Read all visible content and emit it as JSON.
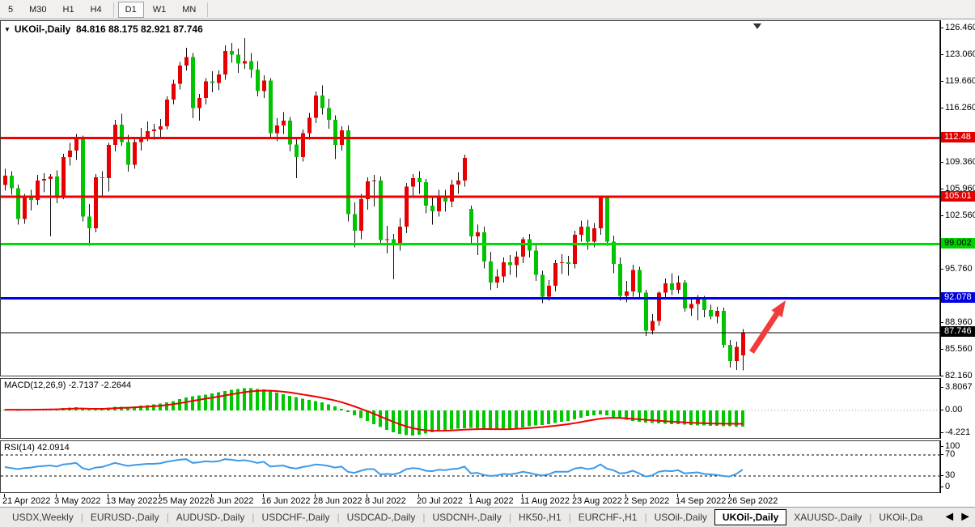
{
  "toolbar": {
    "items": [
      {
        "label": "5",
        "active": false,
        "sep_after": false
      },
      {
        "label": "M30",
        "active": false,
        "sep_after": false
      },
      {
        "label": "H1",
        "active": false,
        "sep_after": false
      },
      {
        "label": "H4",
        "active": false,
        "sep_after": true
      },
      {
        "label": "D1",
        "active": true,
        "sep_after": false
      },
      {
        "label": "W1",
        "active": false,
        "sep_after": false
      },
      {
        "label": "MN",
        "active": false,
        "sep_after": true
      }
    ]
  },
  "icons": {
    "symbol_dropdown": "▼",
    "tab_scroll_left": "◄",
    "tab_scroll_right": "►"
  },
  "chart_data": {
    "type": "candlestick",
    "title": {
      "symbol": "UKOil-,Daily",
      "ohlc_text": "84.816 88.175 82.921 87.746",
      "open": "84.816",
      "high": "88.175",
      "low": "82.921",
      "close": "87.746"
    },
    "colors": {
      "candle_up": "#e80000",
      "candle_down": "#00c400",
      "wick": "#111111",
      "line_red": "#f00000",
      "line_green": "#00dc00",
      "line_blue": "#0000f0",
      "line_black": "#000000",
      "macd_histogram": "#00c800",
      "macd_signal": "#f00000",
      "rsi_line": "#3d9ae8",
      "arrow": "#f23c3c",
      "shift_marker": "#333333"
    },
    "price_axis": {
      "tick_labels": [
        {
          "label": "126.460",
          "value": 126.46
        },
        {
          "label": "123.060",
          "value": 123.06
        },
        {
          "label": "119.660",
          "value": 119.66
        },
        {
          "label": "116.260",
          "value": 116.26
        },
        {
          "label": "109.360",
          "value": 109.36
        },
        {
          "label": "105.960",
          "value": 105.96
        },
        {
          "label": "102.560",
          "value": 102.56
        },
        {
          "label": "95.760",
          "value": 95.76
        },
        {
          "label": "88.960",
          "value": 88.96
        },
        {
          "label": "85.560",
          "value": 85.56
        },
        {
          "label": "82.160",
          "value": 82.16
        }
      ],
      "badges": [
        {
          "label": "112.48",
          "value": 112.48,
          "bg": "#e00000",
          "fg": "#ffffff"
        },
        {
          "label": "105.01",
          "value": 105.01,
          "bg": "#e00000",
          "fg": "#ffffff"
        },
        {
          "label": "99.002",
          "value": 99.002,
          "bg": "#00d000",
          "fg": "#000000"
        },
        {
          "label": "92.078",
          "value": 92.078,
          "bg": "#0000e0",
          "fg": "#ffffff"
        },
        {
          "label": "87.746",
          "value": 87.746,
          "bg": "#000000",
          "fg": "#ffffff"
        }
      ]
    },
    "hlines": [
      {
        "price": 112.48,
        "color": "#f00000",
        "width": 3
      },
      {
        "price": 105.01,
        "color": "#f00000",
        "width": 3
      },
      {
        "price": 99.002,
        "color": "#00dc00",
        "width": 3
      },
      {
        "price": 92.078,
        "color": "#0000f0",
        "width": 3
      },
      {
        "price": 87.746,
        "color": "#000000",
        "width": 1
      }
    ],
    "x_ticks": [
      {
        "index": 0,
        "label": "21 Apr 2022"
      },
      {
        "index": 8,
        "label": "3 May 2022"
      },
      {
        "index": 16,
        "label": "13 May 2022"
      },
      {
        "index": 24,
        "label": "25 May 2022"
      },
      {
        "index": 32,
        "label": "6 Jun 2022"
      },
      {
        "index": 40,
        "label": "16 Jun 2022"
      },
      {
        "index": 48,
        "label": "28 Jun 2022"
      },
      {
        "index": 56,
        "label": "8 Jul 2022"
      },
      {
        "index": 64,
        "label": "20 Jul 2022"
      },
      {
        "index": 72,
        "label": "1 Aug 2022"
      },
      {
        "index": 80,
        "label": "11 Aug 2022"
      },
      {
        "index": 88,
        "label": "23 Aug 2022"
      },
      {
        "index": 96,
        "label": "2 Sep 2022"
      },
      {
        "index": 104,
        "label": "14 Sep 2022"
      },
      {
        "index": 112,
        "label": "26 Sep 2022"
      }
    ],
    "candles": [
      [
        106.5,
        108.6,
        105.8,
        107.7
      ],
      [
        107.7,
        108.3,
        105.3,
        106.1
      ],
      [
        106.1,
        106.6,
        101.5,
        102.2
      ],
      [
        102.2,
        105.4,
        101.6,
        104.9
      ],
      [
        104.9,
        105.9,
        103.3,
        104.6
      ],
      [
        104.6,
        107.8,
        104.0,
        107.1
      ],
      [
        107.1,
        108.0,
        105.6,
        107.3
      ],
      [
        107.3,
        107.9,
        100.0,
        107.6
      ],
      [
        107.6,
        108.4,
        104.2,
        105.0
      ],
      [
        105.0,
        110.5,
        104.7,
        110.1
      ],
      [
        110.1,
        111.9,
        109.0,
        110.9
      ],
      [
        110.9,
        113.0,
        109.7,
        112.4
      ],
      [
        112.4,
        112.8,
        101.9,
        102.5
      ],
      [
        102.5,
        104.1,
        98.8,
        101.0
      ],
      [
        101.0,
        107.9,
        100.5,
        107.5
      ],
      [
        107.5,
        108.3,
        104.9,
        107.4
      ],
      [
        107.4,
        111.9,
        105.7,
        111.6
      ],
      [
        111.6,
        114.8,
        110.8,
        114.2
      ],
      [
        114.2,
        115.6,
        111.5,
        112.0
      ],
      [
        112.0,
        112.9,
        108.2,
        109.1
      ],
      [
        109.1,
        112.4,
        108.6,
        112.0
      ],
      [
        112.0,
        113.8,
        110.9,
        112.6
      ],
      [
        112.6,
        114.6,
        112.1,
        113.4
      ],
      [
        113.4,
        114.3,
        112.3,
        113.6
      ],
      [
        113.6,
        114.9,
        112.6,
        114.0
      ],
      [
        114.0,
        117.8,
        113.6,
        117.4
      ],
      [
        117.4,
        119.9,
        116.8,
        119.4
      ],
      [
        119.4,
        122.2,
        118.7,
        121.7
      ],
      [
        121.7,
        124.0,
        121.1,
        122.8
      ],
      [
        122.8,
        123.3,
        115.0,
        116.3
      ],
      [
        116.3,
        118.1,
        114.7,
        117.6
      ],
      [
        117.6,
        120.1,
        116.8,
        119.7
      ],
      [
        119.7,
        121.0,
        118.3,
        119.5
      ],
      [
        119.5,
        121.1,
        118.6,
        120.6
      ],
      [
        120.6,
        124.3,
        119.9,
        123.6
      ],
      [
        123.6,
        124.6,
        122.1,
        123.1
      ],
      [
        123.1,
        123.9,
        120.8,
        122.0
      ],
      [
        122.0,
        125.2,
        121.3,
        122.3
      ],
      [
        122.3,
        123.3,
        120.2,
        121.2
      ],
      [
        121.2,
        122.3,
        117.8,
        118.5
      ],
      [
        118.5,
        120.5,
        117.6,
        119.8
      ],
      [
        119.8,
        120.1,
        112.6,
        113.1
      ],
      [
        113.1,
        115.0,
        112.1,
        114.1
      ],
      [
        114.1,
        115.8,
        113.0,
        114.7
      ],
      [
        114.7,
        115.2,
        110.8,
        111.7
      ],
      [
        111.7,
        112.5,
        107.4,
        110.1
      ],
      [
        110.1,
        113.6,
        109.5,
        113.1
      ],
      [
        113.1,
        115.7,
        112.3,
        115.1
      ],
      [
        115.1,
        118.4,
        114.4,
        117.9
      ],
      [
        117.9,
        119.2,
        115.5,
        116.3
      ],
      [
        116.3,
        117.5,
        113.7,
        114.8
      ],
      [
        114.8,
        115.4,
        109.8,
        111.6
      ],
      [
        111.6,
        114.0,
        110.9,
        113.5
      ],
      [
        113.5,
        114.1,
        101.9,
        102.8
      ],
      [
        102.8,
        104.3,
        98.6,
        100.7
      ],
      [
        100.7,
        105.4,
        99.6,
        104.7
      ],
      [
        104.7,
        107.5,
        103.4,
        107.0
      ],
      [
        107.0,
        107.8,
        103.8,
        107.1
      ],
      [
        107.1,
        107.6,
        98.9,
        99.5
      ],
      [
        99.5,
        101.3,
        97.8,
        99.6
      ],
      [
        99.6,
        100.3,
        94.5,
        99.1
      ],
      [
        99.1,
        102.3,
        98.2,
        101.2
      ],
      [
        101.2,
        106.8,
        100.4,
        106.3
      ],
      [
        106.3,
        107.9,
        105.2,
        107.4
      ],
      [
        107.4,
        108.3,
        105.4,
        106.9
      ],
      [
        106.9,
        107.3,
        102.9,
        103.9
      ],
      [
        103.9,
        105.0,
        101.5,
        103.2
      ],
      [
        103.2,
        105.9,
        102.5,
        105.2
      ],
      [
        105.2,
        105.9,
        103.1,
        104.4
      ],
      [
        104.4,
        107.2,
        103.7,
        106.6
      ],
      [
        106.6,
        108.1,
        105.4,
        107.1
      ],
      [
        107.1,
        110.4,
        106.3,
        110.0
      ],
      [
        103.5,
        103.9,
        99.1,
        100.0
      ],
      [
        100.0,
        101.5,
        97.6,
        100.5
      ],
      [
        100.5,
        101.2,
        95.9,
        96.8
      ],
      [
        96.8,
        98.0,
        93.2,
        94.1
      ],
      [
        94.1,
        95.8,
        93.4,
        94.9
      ],
      [
        94.9,
        97.3,
        94.1,
        96.7
      ],
      [
        96.7,
        97.6,
        95.1,
        96.3
      ],
      [
        96.3,
        98.1,
        94.8,
        97.4
      ],
      [
        97.4,
        99.9,
        96.6,
        99.6
      ],
      [
        99.6,
        100.3,
        97.3,
        98.2
      ],
      [
        98.2,
        98.9,
        94.3,
        95.1
      ],
      [
        95.1,
        95.6,
        91.5,
        92.3
      ],
      [
        92.3,
        94.4,
        91.8,
        93.7
      ],
      [
        93.7,
        97.0,
        93.0,
        96.6
      ],
      [
        96.6,
        97.7,
        95.2,
        96.7
      ],
      [
        96.7,
        97.5,
        95.0,
        96.5
      ],
      [
        96.5,
        100.7,
        95.9,
        100.2
      ],
      [
        100.2,
        102.0,
        99.3,
        101.2
      ],
      [
        101.2,
        102.1,
        98.3,
        99.3
      ],
      [
        99.3,
        101.7,
        98.6,
        101.0
      ],
      [
        101.0,
        105.1,
        100.2,
        104.9
      ],
      [
        104.9,
        105.2,
        98.8,
        99.3
      ],
      [
        99.3,
        100.1,
        95.3,
        96.5
      ],
      [
        96.5,
        97.3,
        91.8,
        92.4
      ],
      [
        92.4,
        94.3,
        91.6,
        93.0
      ],
      [
        93.0,
        96.4,
        92.3,
        95.7
      ],
      [
        95.7,
        96.1,
        92.1,
        92.8
      ],
      [
        92.8,
        93.2,
        87.3,
        88.0
      ],
      [
        88.0,
        90.1,
        87.5,
        89.2
      ],
      [
        89.2,
        93.0,
        88.6,
        92.8
      ],
      [
        92.8,
        94.6,
        92.1,
        94.0
      ],
      [
        94.0,
        95.3,
        92.5,
        93.2
      ],
      [
        93.2,
        95.0,
        92.7,
        94.1
      ],
      [
        94.1,
        94.4,
        90.4,
        90.8
      ],
      [
        90.8,
        92.2,
        89.9,
        91.4
      ],
      [
        91.4,
        92.5,
        89.3,
        92.0
      ],
      [
        92.0,
        92.4,
        89.7,
        90.6
      ],
      [
        90.6,
        91.3,
        89.4,
        89.8
      ],
      [
        89.8,
        91.0,
        88.9,
        90.5
      ],
      [
        90.5,
        90.9,
        85.8,
        86.2
      ],
      [
        86.2,
        86.8,
        83.3,
        84.1
      ],
      [
        84.1,
        86.6,
        83.0,
        85.9
      ],
      [
        84.816,
        88.175,
        82.921,
        87.746
      ]
    ],
    "macd": {
      "name": "MACD(12,26,9)",
      "main_value": "-2.7137",
      "signal_value": "-2.2644",
      "axis_labels": [
        {
          "label": "3.8067",
          "value": 3.8067
        },
        {
          "label": "0.00",
          "value": 0.0
        },
        {
          "label": "-4.221",
          "value": -4.221
        }
      ],
      "histogram": [
        0.15,
        0.12,
        0.1,
        0.12,
        0.15,
        0.18,
        0.2,
        0.25,
        0.3,
        0.4,
        0.5,
        0.55,
        0.35,
        0.15,
        0.2,
        0.3,
        0.45,
        0.6,
        0.65,
        0.6,
        0.7,
        0.8,
        0.9,
        1.0,
        1.15,
        1.35,
        1.6,
        1.9,
        2.2,
        2.4,
        2.55,
        2.7,
        2.85,
        3.05,
        3.3,
        3.5,
        3.65,
        3.8,
        3.75,
        3.65,
        3.55,
        3.3,
        3.0,
        2.75,
        2.5,
        2.25,
        2.0,
        1.8,
        1.6,
        1.35,
        1.05,
        0.7,
        0.3,
        -0.3,
        -0.8,
        -1.3,
        -1.8,
        -2.3,
        -2.8,
        -3.3,
        -3.7,
        -4.0,
        -4.15,
        -4.22,
        -4.1,
        -3.9,
        -3.7,
        -3.5,
        -3.35,
        -3.2,
        -3.1,
        -3.0,
        -2.95,
        -3.0,
        -3.1,
        -3.2,
        -3.25,
        -3.2,
        -3.1,
        -3.0,
        -2.85,
        -2.7,
        -2.55,
        -2.45,
        -2.3,
        -2.15,
        -1.95,
        -1.75,
        -1.5,
        -1.2,
        -0.95,
        -0.8,
        -0.7,
        -0.85,
        -1.1,
        -1.4,
        -1.6,
        -1.75,
        -1.9,
        -2.05,
        -2.15,
        -2.2,
        -2.25,
        -2.3,
        -2.35,
        -2.4,
        -2.45,
        -2.5,
        -2.55,
        -2.58,
        -2.62,
        -2.66,
        -2.69,
        -2.71,
        -2.7137
      ],
      "signal": [
        0.12,
        0.12,
        0.12,
        0.12,
        0.13,
        0.14,
        0.15,
        0.17,
        0.19,
        0.23,
        0.28,
        0.33,
        0.33,
        0.29,
        0.27,
        0.28,
        0.31,
        0.37,
        0.42,
        0.46,
        0.51,
        0.57,
        0.63,
        0.71,
        0.8,
        0.91,
        1.05,
        1.22,
        1.41,
        1.61,
        1.8,
        1.98,
        2.15,
        2.33,
        2.53,
        2.72,
        2.91,
        3.09,
        3.22,
        3.3,
        3.35,
        3.34,
        3.27,
        3.17,
        3.04,
        2.88,
        2.7,
        2.52,
        2.34,
        2.14,
        1.92,
        1.68,
        1.4,
        1.06,
        0.69,
        0.29,
        -0.13,
        -0.56,
        -1.01,
        -1.47,
        -1.92,
        -2.33,
        -2.7,
        -3.0,
        -3.22,
        -3.36,
        -3.43,
        -3.44,
        -3.42,
        -3.38,
        -3.32,
        -3.26,
        -3.2,
        -3.16,
        -3.14,
        -3.16,
        -3.17,
        -3.18,
        -3.16,
        -3.13,
        -3.07,
        -3.0,
        -2.91,
        -2.82,
        -2.71,
        -2.6,
        -2.47,
        -2.33,
        -2.16,
        -1.97,
        -1.77,
        -1.57,
        -1.4,
        -1.29,
        -1.25,
        -1.28,
        -1.35,
        -1.42,
        -1.5,
        -1.58,
        -1.66,
        -1.74,
        -1.82,
        -1.9,
        -1.96,
        -2.02,
        -2.08,
        -2.13,
        -2.17,
        -2.2,
        -2.22,
        -2.24,
        -2.25,
        -2.26,
        -2.2644
      ]
    },
    "rsi": {
      "name": "RSI(14)",
      "value": "42.0914",
      "axis_labels": [
        {
          "label": "100",
          "value": 100
        },
        {
          "label": "70",
          "value": 70
        },
        {
          "label": "30",
          "value": 30
        },
        {
          "label": "0",
          "value": 0
        }
      ],
      "levels": [
        70,
        30
      ],
      "line": [
        47,
        45,
        43,
        45,
        46,
        48,
        49,
        50,
        48,
        52,
        53,
        55,
        45,
        42,
        46,
        47,
        51,
        55,
        52,
        49,
        51,
        52,
        53,
        53,
        54,
        57,
        59,
        61,
        62,
        55,
        56,
        58,
        57,
        58,
        62,
        61,
        59,
        60,
        58,
        55,
        57,
        48,
        49,
        50,
        46,
        44,
        47,
        49,
        52,
        51,
        49,
        46,
        48,
        38,
        36,
        40,
        43,
        43,
        33,
        34,
        33,
        36,
        43,
        45,
        44,
        40,
        39,
        42,
        41,
        43,
        44,
        48,
        35,
        36,
        32,
        30,
        31,
        34,
        33,
        35,
        38,
        36,
        33,
        31,
        33,
        38,
        38,
        38,
        44,
        46,
        43,
        45,
        52,
        44,
        41,
        35,
        36,
        40,
        35,
        29,
        31,
        38,
        40,
        39,
        41,
        35,
        36,
        37,
        34,
        33,
        32,
        30,
        29,
        34,
        42.09
      ]
    }
  },
  "tabs": {
    "items": [
      {
        "label": "USDX,Weekly",
        "active": false
      },
      {
        "label": "EURUSD-,Daily",
        "active": false
      },
      {
        "label": "AUDUSD-,Daily",
        "active": false
      },
      {
        "label": "USDCHF-,Daily",
        "active": false
      },
      {
        "label": "USDCAD-,Daily",
        "active": false
      },
      {
        "label": "USDCNH-,Daily",
        "active": false
      },
      {
        "label": "HK50-,H1",
        "active": false
      },
      {
        "label": "EURCHF-,H1",
        "active": false
      },
      {
        "label": "USOil-,Daily",
        "active": false
      },
      {
        "label": "UKOil-,Daily",
        "active": true
      },
      {
        "label": "XAUUSD-,Daily",
        "active": false
      },
      {
        "label": "UKOil-,Da",
        "active": false
      }
    ]
  }
}
